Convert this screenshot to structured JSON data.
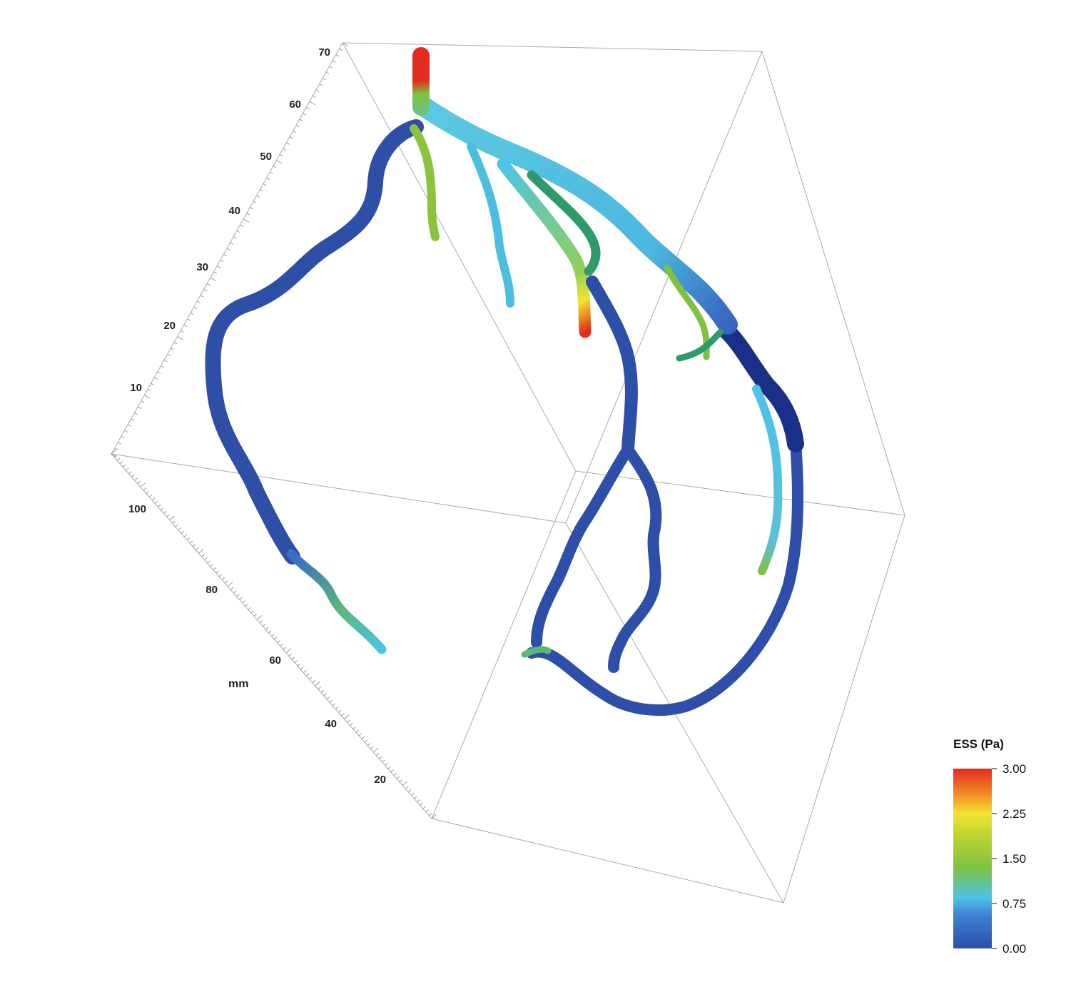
{
  "axes": {
    "vertical_ticks": [
      "70",
      "60",
      "50",
      "40",
      "30",
      "20",
      "10"
    ],
    "depth_ticks": [
      "100",
      "80",
      "60",
      "40",
      "20"
    ],
    "depth_title": "mm"
  },
  "colorbar": {
    "title": "ESS (Pa)",
    "labels": [
      "3.00",
      "2.25",
      "1.50",
      "0.75",
      "0.00"
    ],
    "min": 0.0,
    "max": 3.0,
    "stops": [
      {
        "offset": 0.0,
        "color": "#2b4fa8"
      },
      {
        "offset": 0.18,
        "color": "#3f7fd0"
      },
      {
        "offset": 0.28,
        "color": "#4cc3e8"
      },
      {
        "offset": 0.45,
        "color": "#7fc241"
      },
      {
        "offset": 0.62,
        "color": "#b9d531"
      },
      {
        "offset": 0.75,
        "color": "#f2e42f"
      },
      {
        "offset": 0.88,
        "color": "#f07a25"
      },
      {
        "offset": 1.0,
        "color": "#e32b1f"
      }
    ]
  }
}
